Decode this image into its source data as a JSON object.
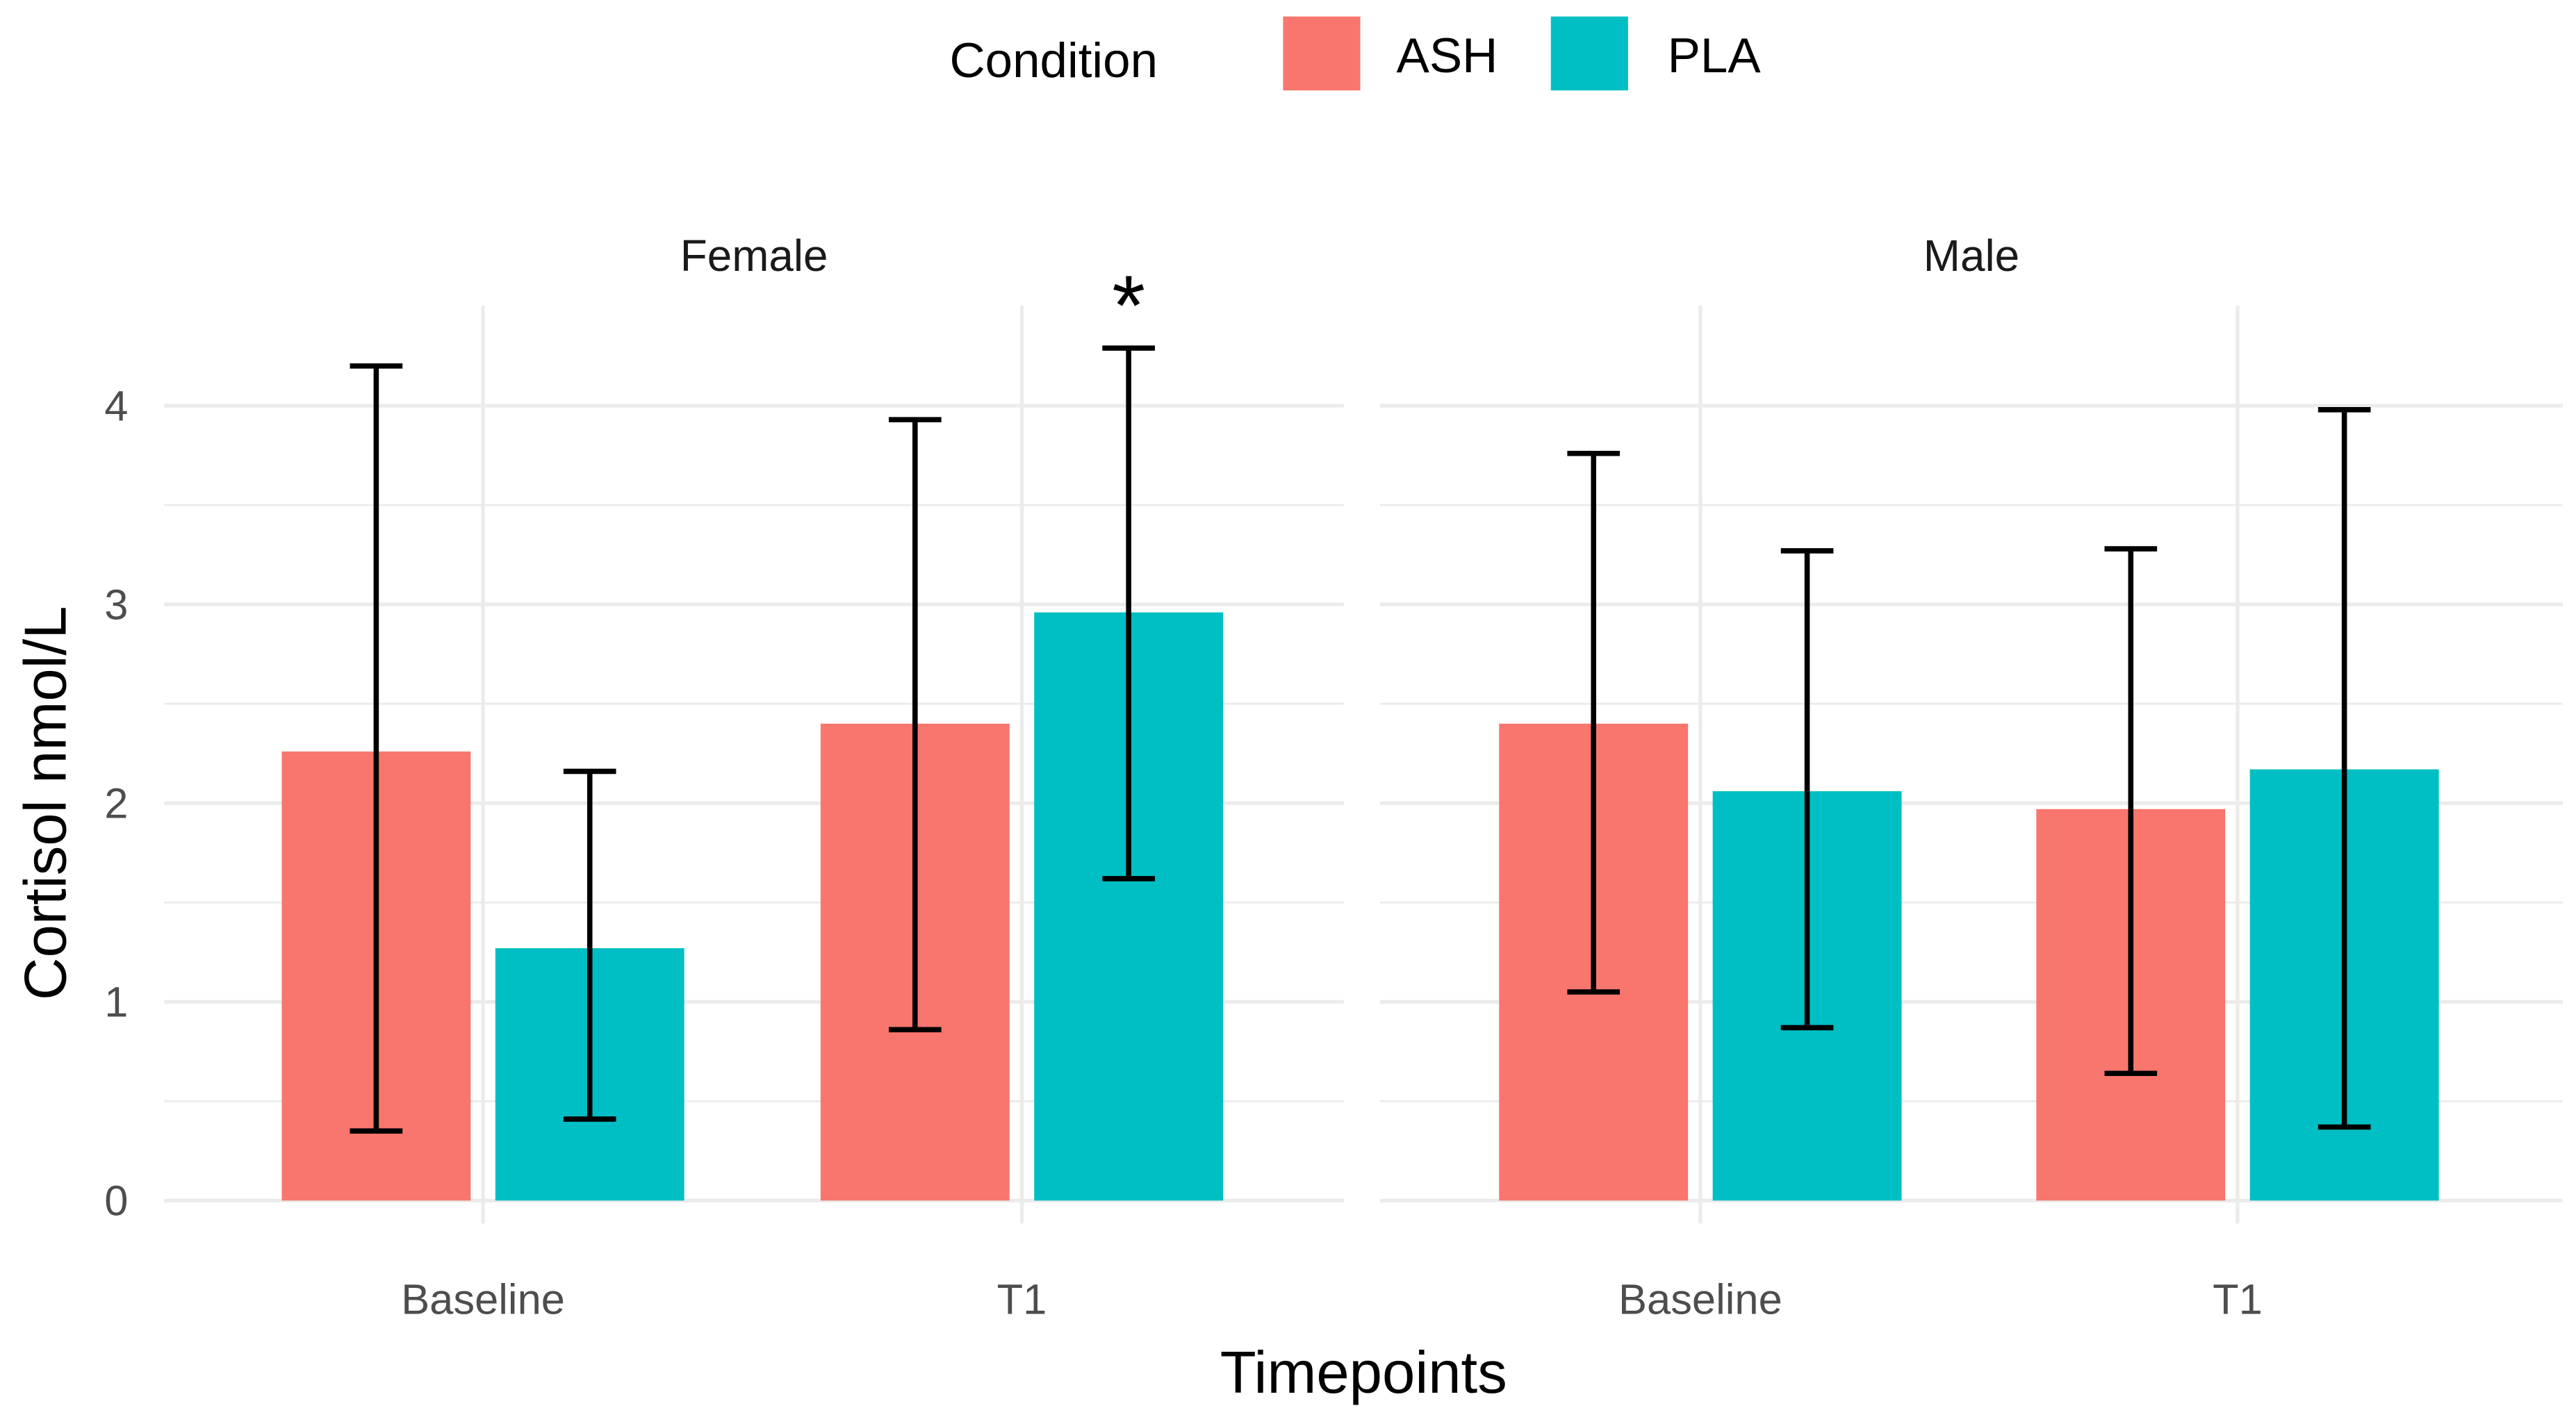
{
  "chart_data": {
    "type": "bar",
    "xlabel": "Timepoints",
    "ylabel": "Cortisol nmol/L",
    "ylim": [
      0,
      4.4
    ],
    "yticks": [
      0,
      1,
      2,
      3,
      4
    ],
    "grid": true,
    "legend": {
      "title": "Condition",
      "placement": "top",
      "entries": [
        "ASH",
        "PLA"
      ]
    },
    "colors": {
      "ASH": "#F8766D",
      "PLA": "#00BFC4"
    },
    "categories": [
      "Baseline",
      "T1"
    ],
    "panels": [
      {
        "name": "Female",
        "annotations": [
          {
            "category": "T1",
            "series": "PLA",
            "text": "*"
          }
        ],
        "series": [
          {
            "name": "ASH",
            "values": [
              2.26,
              2.4
            ],
            "err_low": [
              0.35,
              0.86
            ],
            "err_high": [
              4.2,
              3.93
            ]
          },
          {
            "name": "PLA",
            "values": [
              1.27,
              2.96
            ],
            "err_low": [
              0.41,
              1.62
            ],
            "err_high": [
              2.16,
              4.29
            ]
          }
        ]
      },
      {
        "name": "Male",
        "annotations": [],
        "series": [
          {
            "name": "ASH",
            "values": [
              2.4,
              1.97
            ],
            "err_low": [
              1.05,
              0.64
            ],
            "err_high": [
              3.76,
              3.28
            ]
          },
          {
            "name": "PLA",
            "values": [
              2.06,
              2.17
            ],
            "err_low": [
              0.87,
              0.37
            ],
            "err_high": [
              3.27,
              3.98
            ]
          }
        ]
      }
    ]
  }
}
